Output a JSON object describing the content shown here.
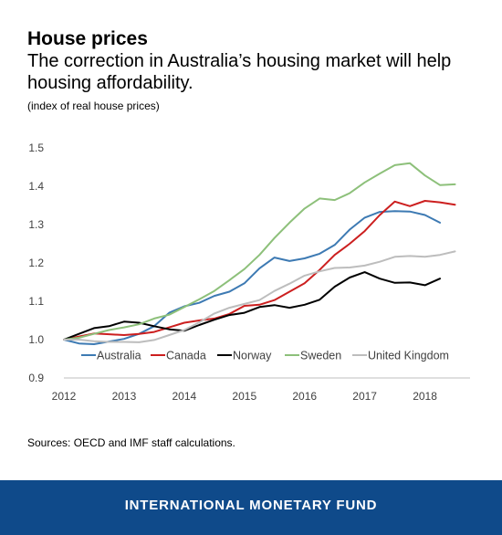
{
  "header": {
    "title": "House prices",
    "subtitle": "The correction in Australia’s housing market will help housing affordability.",
    "note": "(index of real house prices)"
  },
  "source": "Sources: OECD and IMF staff calculations.",
  "footer": {
    "label": "INTERNATIONAL MONETARY FUND",
    "bg_color": "#0f4a8a"
  },
  "chart_data": {
    "type": "line",
    "ylim": [
      0.9,
      1.5
    ],
    "yticks": [
      "0.9",
      "1.0",
      "1.1",
      "1.2",
      "1.3",
      "1.4",
      "1.5"
    ],
    "xlim": [
      2012.0,
      2018.75
    ],
    "xticks": [
      "2012",
      "2013",
      "2014",
      "2015",
      "2016",
      "2017",
      "2018"
    ],
    "grid": false,
    "legend_position": "bottom-inside",
    "x": [
      2012.0,
      2012.25,
      2012.5,
      2012.75,
      2013.0,
      2013.25,
      2013.5,
      2013.75,
      2014.0,
      2014.25,
      2014.5,
      2014.75,
      2015.0,
      2015.25,
      2015.5,
      2015.75,
      2016.0,
      2016.25,
      2016.5,
      2016.75,
      2017.0,
      2017.25,
      2017.5,
      2017.75,
      2018.0,
      2018.25,
      2018.5
    ],
    "series": [
      {
        "name": "Australia",
        "color": "#3d7ab3",
        "values": [
          1.0,
          0.99,
          0.988,
          0.995,
          1.002,
          1.015,
          1.035,
          1.07,
          1.087,
          1.096,
          1.114,
          1.125,
          1.147,
          1.186,
          1.214,
          1.205,
          1.212,
          1.224,
          1.247,
          1.287,
          1.318,
          1.333,
          1.335,
          1.334,
          1.325,
          1.305,
          null
        ]
      },
      {
        "name": "Canada",
        "color": "#cc1f1f",
        "values": [
          1.0,
          1.008,
          1.016,
          1.014,
          1.012,
          1.015,
          1.02,
          1.032,
          1.044,
          1.05,
          1.055,
          1.067,
          1.088,
          1.091,
          1.103,
          1.125,
          1.147,
          1.182,
          1.221,
          1.25,
          1.283,
          1.325,
          1.36,
          1.348,
          1.362,
          1.358,
          1.352
        ]
      },
      {
        "name": "Norway",
        "color": "#000000",
        "values": [
          1.0,
          1.015,
          1.03,
          1.035,
          1.047,
          1.044,
          1.035,
          1.027,
          1.023,
          1.038,
          1.052,
          1.064,
          1.07,
          1.085,
          1.09,
          1.083,
          1.091,
          1.104,
          1.138,
          1.162,
          1.176,
          1.159,
          1.148,
          1.149,
          1.142,
          1.159,
          null
        ]
      },
      {
        "name": "Sweden",
        "color": "#8dc07a",
        "values": [
          1.0,
          1.005,
          1.015,
          1.025,
          1.032,
          1.04,
          1.055,
          1.065,
          1.085,
          1.105,
          1.127,
          1.155,
          1.184,
          1.221,
          1.265,
          1.305,
          1.342,
          1.368,
          1.364,
          1.382,
          1.41,
          1.433,
          1.455,
          1.46,
          1.428,
          1.403,
          1.405
        ]
      },
      {
        "name": "United Kingdom",
        "color": "#bdbdbd",
        "values": [
          1.0,
          1.0,
          0.996,
          0.994,
          0.994,
          0.993,
          0.999,
          1.012,
          1.025,
          1.045,
          1.068,
          1.083,
          1.093,
          1.103,
          1.127,
          1.146,
          1.167,
          1.178,
          1.187,
          1.188,
          1.193,
          1.203,
          1.216,
          1.218,
          1.216,
          1.221,
          1.23
        ]
      }
    ]
  }
}
